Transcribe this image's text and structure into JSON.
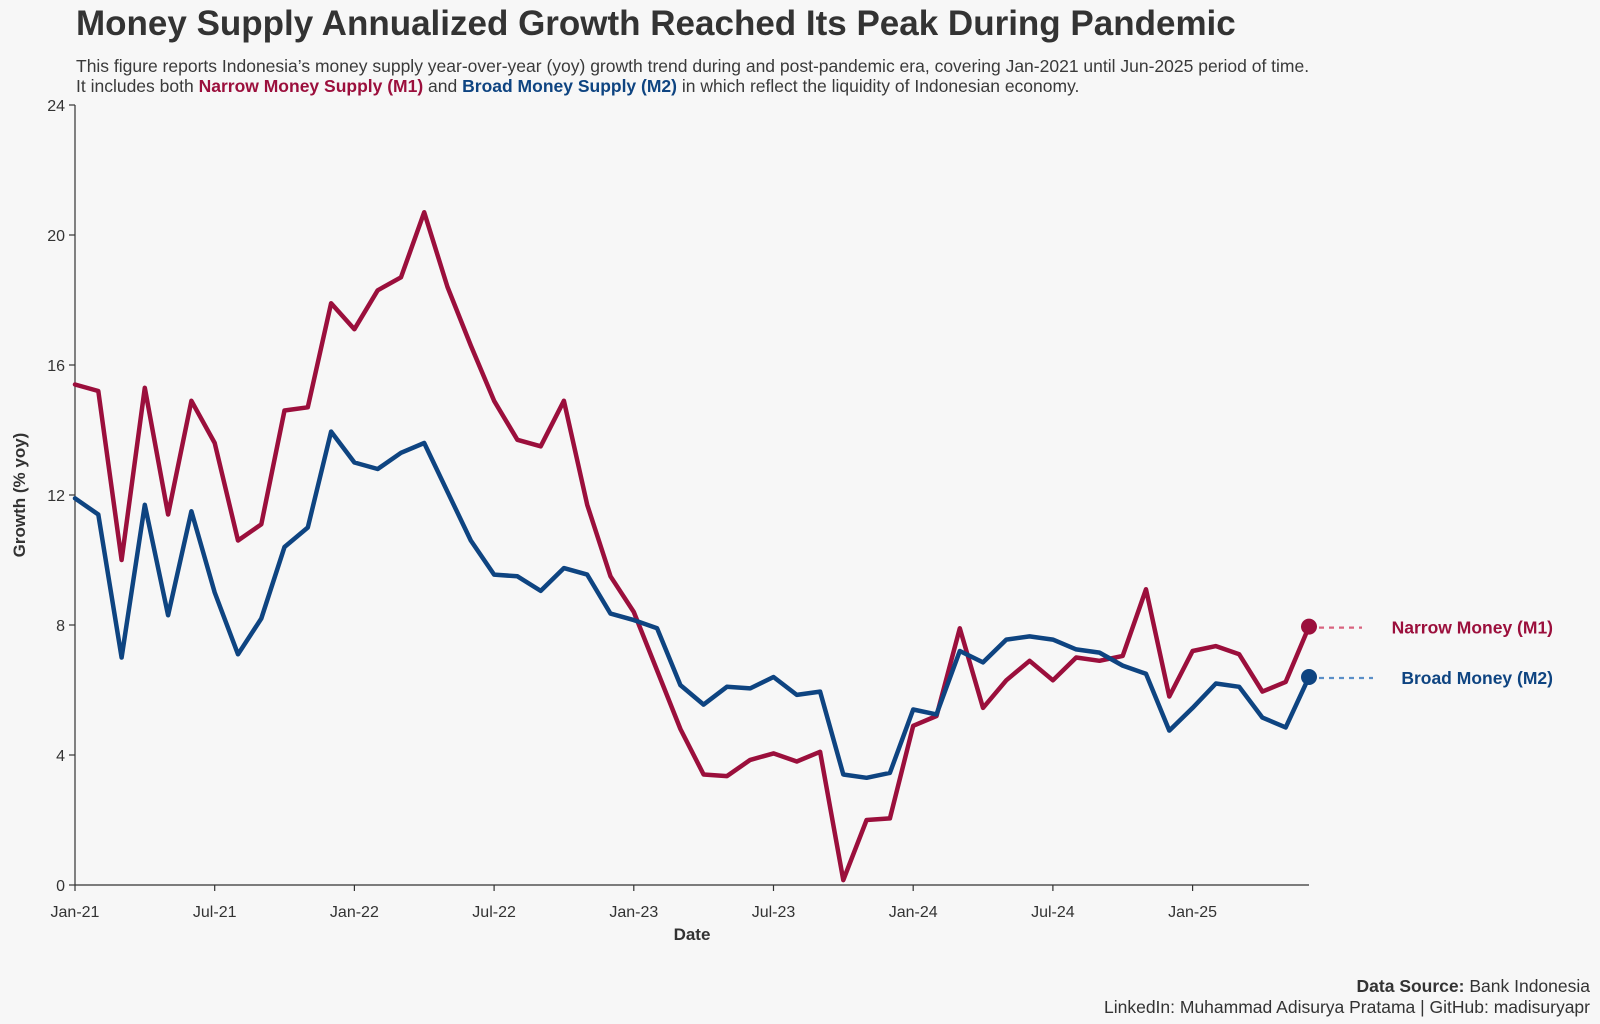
{
  "title": "Money Supply Annualized Growth Reached Its Peak During Pandemic",
  "subtitle": {
    "line1": "This figure reports Indonesia’s money supply year-over-year (yoy) growth trend during and post-pandemic era, covering Jan-2021 until Jun-2025 period of time.",
    "line2_prefix": "It includes both ",
    "m1_name": "Narrow Money Supply (M1)",
    "line2_mid": " and ",
    "m2_name": "Broad Money Supply (M2)",
    "line2_suffix": " in which reflect the liquidity of Indonesian economy."
  },
  "footer": {
    "source_label": "Data Source:",
    "source_value": " Bank Indonesia",
    "credits": "LinkedIn: Muhammad Adisurya Pratama | GitHub: madisuryapr"
  },
  "colors": {
    "m1": "#9b0f3c",
    "m2": "#0e4481",
    "m1_dash": "#d9637f",
    "m2_dash": "#5b8fc7",
    "background": "#f7f7f7",
    "axis": "#333333"
  },
  "chart_data": {
    "type": "line",
    "xlabel": "Date",
    "ylabel": "Growth (% yoy)",
    "ylim": [
      0,
      24
    ],
    "yticks": [
      0,
      4,
      8,
      12,
      16,
      20,
      24
    ],
    "xlim": [
      "Jan-21",
      "Jun-25"
    ],
    "xticks": [
      "Jan-21",
      "Jul-21",
      "Jan-22",
      "Jul-22",
      "Jan-23",
      "Jul-23",
      "Jan-24",
      "Jul-24",
      "Jan-25"
    ],
    "grid": false,
    "x": [
      "Jan-21",
      "Feb-21",
      "Mar-21",
      "Apr-21",
      "May-21",
      "Jun-21",
      "Jul-21",
      "Aug-21",
      "Sep-21",
      "Oct-21",
      "Nov-21",
      "Dec-21",
      "Jan-22",
      "Feb-22",
      "Mar-22",
      "Apr-22",
      "May-22",
      "Jun-22",
      "Jul-22",
      "Aug-22",
      "Sep-22",
      "Oct-22",
      "Nov-22",
      "Dec-22",
      "Jan-23",
      "Feb-23",
      "Mar-23",
      "Apr-23",
      "May-23",
      "Jun-23",
      "Jul-23",
      "Aug-23",
      "Sep-23",
      "Oct-23",
      "Nov-23",
      "Dec-23",
      "Jan-24",
      "Feb-24",
      "Mar-24",
      "Apr-24",
      "May-24",
      "Jun-24",
      "Jul-24",
      "Aug-24",
      "Sep-24",
      "Oct-24",
      "Nov-24",
      "Dec-24",
      "Jan-25",
      "Feb-25",
      "Mar-25",
      "Apr-25",
      "May-25",
      "Jun-25"
    ],
    "series": [
      {
        "name": "Narrow Money (M1)",
        "key": "m1",
        "values": [
          15.4,
          15.2,
          10.0,
          15.3,
          11.4,
          14.9,
          13.6,
          10.6,
          11.1,
          14.6,
          14.7,
          17.9,
          17.1,
          18.3,
          18.7,
          20.7,
          18.4,
          16.6,
          14.9,
          13.7,
          13.5,
          14.9,
          11.7,
          9.5,
          8.4,
          6.6,
          4.8,
          3.4,
          3.35,
          3.85,
          4.05,
          3.8,
          4.1,
          0.15,
          2.0,
          2.05,
          4.9,
          5.2,
          7.9,
          5.45,
          6.3,
          6.9,
          6.3,
          7.0,
          6.9,
          7.05,
          9.1,
          5.8,
          7.2,
          7.35,
          7.1,
          5.95,
          6.25,
          7.95
        ]
      },
      {
        "name": "Broad Money (M2)",
        "key": "m2",
        "values": [
          11.9,
          11.4,
          7.0,
          11.7,
          8.3,
          11.5,
          9.0,
          7.1,
          8.2,
          10.4,
          11.0,
          13.95,
          13.0,
          12.8,
          13.3,
          13.6,
          12.1,
          10.6,
          9.55,
          9.5,
          9.05,
          9.75,
          9.55,
          8.35,
          8.15,
          7.9,
          6.15,
          5.55,
          6.1,
          6.05,
          6.4,
          5.85,
          5.95,
          3.4,
          3.3,
          3.45,
          5.4,
          5.25,
          7.2,
          6.85,
          7.55,
          7.65,
          7.55,
          7.25,
          7.15,
          6.75,
          6.5,
          4.75,
          5.45,
          6.2,
          6.1,
          5.15,
          4.85,
          6.4
        ]
      }
    ]
  }
}
